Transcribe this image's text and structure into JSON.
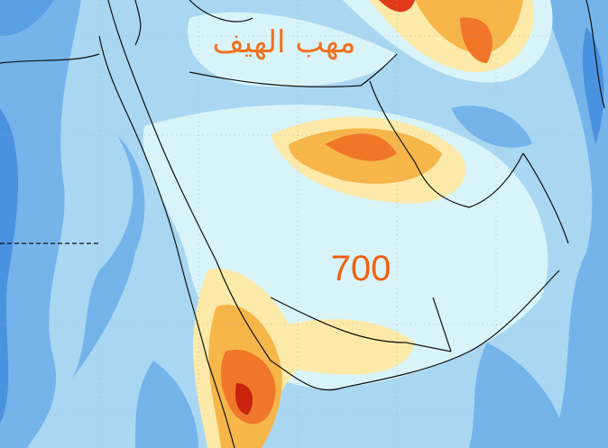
{
  "labels": {
    "region": "مهب الهيف",
    "level": "700"
  }
}
